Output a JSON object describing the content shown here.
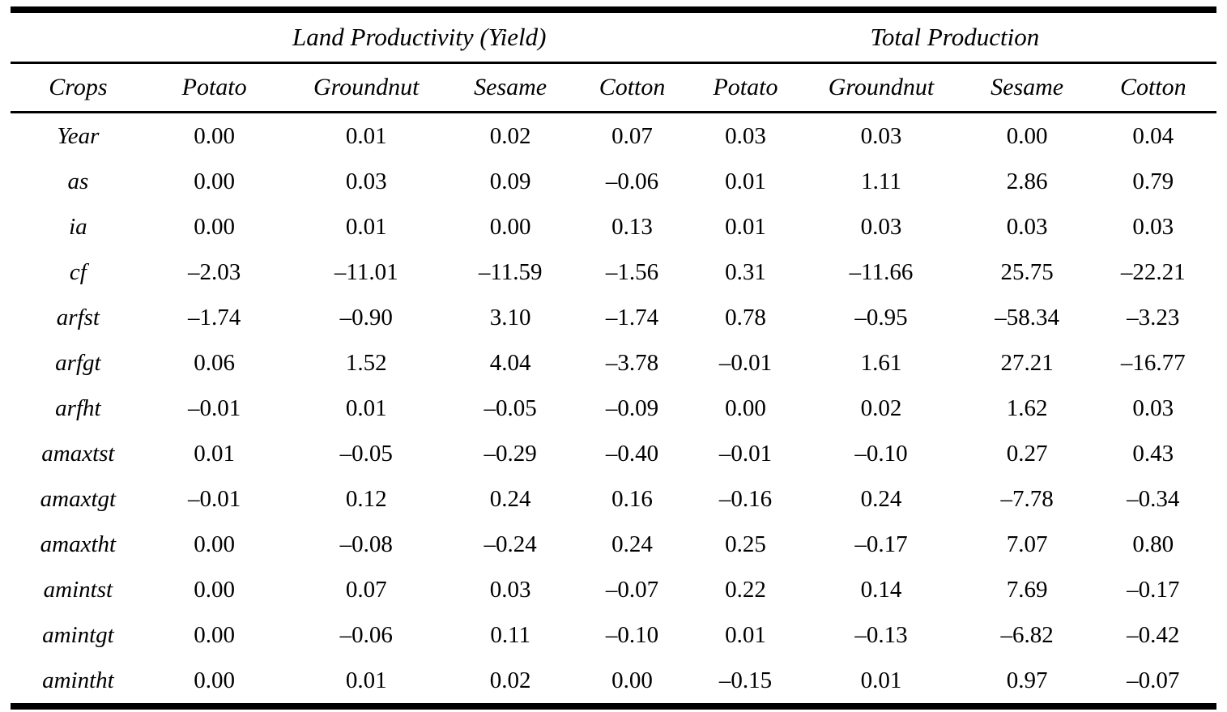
{
  "table": {
    "span_headers": [
      {
        "label": "Land Productivity (Yield)"
      },
      {
        "label": "Total Production"
      }
    ],
    "columns": [
      "Crops",
      "Potato",
      "Groundnut",
      "Sesame",
      "Cotton",
      "Potato",
      "Groundnut",
      "Sesame",
      "Cotton"
    ],
    "rows": [
      {
        "label": "Year",
        "values": [
          "0.00",
          "0.01",
          "0.02",
          "0.07",
          "0.03",
          "0.03",
          "0.00",
          "0.04"
        ]
      },
      {
        "label": "as",
        "values": [
          "0.00",
          "0.03",
          "0.09",
          "–0.06",
          "0.01",
          "1.11",
          "2.86",
          "0.79"
        ]
      },
      {
        "label": "ia",
        "values": [
          "0.00",
          "0.01",
          "0.00",
          "0.13",
          "0.01",
          "0.03",
          "0.03",
          "0.03"
        ]
      },
      {
        "label": "cf",
        "values": [
          "–2.03",
          "–11.01",
          "–11.59",
          "–1.56",
          "0.31",
          "–11.66",
          "25.75",
          "–22.21"
        ]
      },
      {
        "label": "arfst",
        "values": [
          "–1.74",
          "–0.90",
          "3.10",
          "–1.74",
          "0.78",
          "–0.95",
          "–58.34",
          "–3.23"
        ]
      },
      {
        "label": "arfgt",
        "values": [
          "0.06",
          "1.52",
          "4.04",
          "–3.78",
          "–0.01",
          "1.61",
          "27.21",
          "–16.77"
        ]
      },
      {
        "label": "arfht",
        "values": [
          "–0.01",
          "0.01",
          "–0.05",
          "–0.09",
          "0.00",
          "0.02",
          "1.62",
          "0.03"
        ]
      },
      {
        "label": "amaxtst",
        "values": [
          "0.01",
          "–0.05",
          "–0.29",
          "–0.40",
          "–0.01",
          "–0.10",
          "0.27",
          "0.43"
        ]
      },
      {
        "label": "amaxtgt",
        "values": [
          "–0.01",
          "0.12",
          "0.24",
          "0.16",
          "–0.16",
          "0.24",
          "–7.78",
          "–0.34"
        ]
      },
      {
        "label": "amaxtht",
        "values": [
          "0.00",
          "–0.08",
          "–0.24",
          "0.24",
          "0.25",
          "–0.17",
          "7.07",
          "0.80"
        ]
      },
      {
        "label": "amintst",
        "values": [
          "0.00",
          "0.07",
          "0.03",
          "–0.07",
          "0.22",
          "0.14",
          "7.69",
          "–0.17"
        ]
      },
      {
        "label": "amintgt",
        "values": [
          "0.00",
          "–0.06",
          "0.11",
          "–0.10",
          "0.01",
          "–0.13",
          "–6.82",
          "–0.42"
        ]
      },
      {
        "label": "amintht",
        "values": [
          "0.00",
          "0.01",
          "0.02",
          "0.00",
          "–0.15",
          "0.01",
          "0.97",
          "–0.07"
        ]
      }
    ]
  }
}
